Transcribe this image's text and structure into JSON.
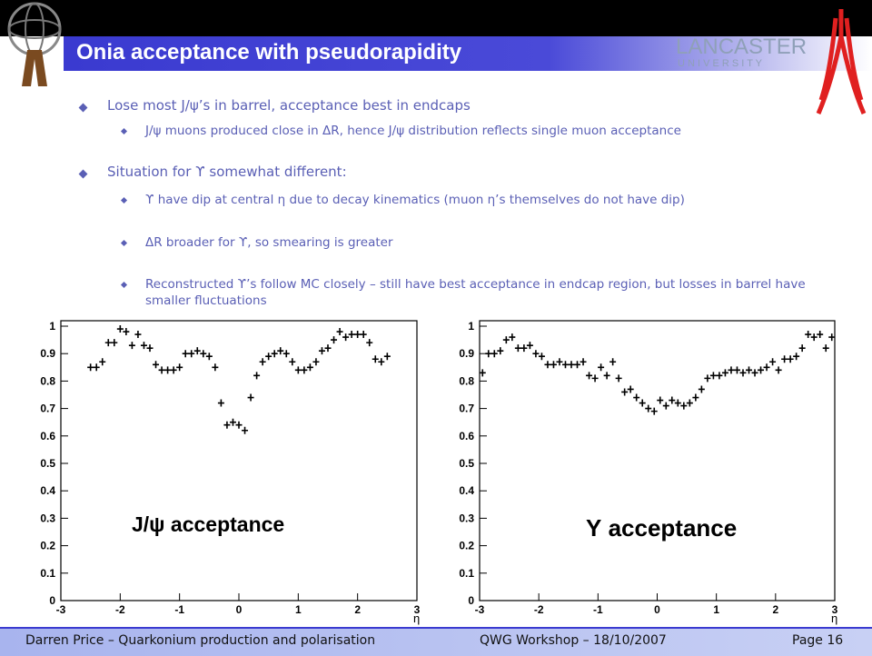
{
  "header": {
    "title": "Onia acceptance with pseudorapidity",
    "logo_name": "LANCASTER",
    "logo_sub": "U N I V E R S I T Y"
  },
  "bullets": [
    {
      "text": "Lose most J/ψ’s in barrel, acceptance best in endcaps",
      "sub": [
        "J/ψ muons produced close in ΔR, hence J/ψ distribution reflects single muon acceptance"
      ]
    },
    {
      "text": "Situation for ϒ somewhat different:",
      "sub": [
        "ϒ have dip at central η due to decay kinematics (muon η’s themselves do not have dip)",
        "ΔR broader for ϒ, so smearing is greater",
        "Reconstructed ϒ’s follow MC closely – still have best acceptance in endcap region, but losses in barrel have smaller fluctuations"
      ]
    }
  ],
  "footer": {
    "left": "Darren Price – Quarkonium production and polarisation",
    "center": "QWG Workshop – 18/10/2007",
    "right": "Page 16"
  },
  "chart_data": [
    {
      "type": "scatter",
      "annotation": "J/ψ acceptance",
      "xlabel": "η",
      "color": "#000000",
      "x": [
        -2.5,
        -2.4,
        -2.3,
        -2.2,
        -2.1,
        -2.0,
        -1.9,
        -1.8,
        -1.7,
        -1.6,
        -1.5,
        -1.4,
        -1.3,
        -1.2,
        -1.1,
        -1.0,
        -0.9,
        -0.8,
        -0.7,
        -0.6,
        -0.5,
        -0.4,
        -0.3,
        -0.2,
        -0.1,
        0.0,
        0.1,
        0.2,
        0.3,
        0.4,
        0.5,
        0.6,
        0.7,
        0.8,
        0.9,
        1.0,
        1.1,
        1.2,
        1.3,
        1.4,
        1.5,
        1.6,
        1.7,
        1.8,
        1.9,
        2.0,
        2.1,
        2.2,
        2.3,
        2.4,
        2.5
      ],
      "values": [
        0.85,
        0.85,
        0.87,
        0.94,
        0.94,
        0.99,
        0.98,
        0.93,
        0.97,
        0.93,
        0.92,
        0.86,
        0.84,
        0.84,
        0.84,
        0.85,
        0.9,
        0.9,
        0.91,
        0.9,
        0.89,
        0.85,
        0.72,
        0.64,
        0.65,
        0.64,
        0.62,
        0.74,
        0.82,
        0.87,
        0.89,
        0.9,
        0.91,
        0.9,
        0.87,
        0.84,
        0.84,
        0.85,
        0.87,
        0.91,
        0.92,
        0.95,
        0.98,
        0.96,
        0.97,
        0.97,
        0.97,
        0.94,
        0.88,
        0.87,
        0.89
      ],
      "xlim": [
        -3,
        3
      ],
      "ylim": [
        0,
        1
      ],
      "xticks": [
        -3,
        -2,
        -1,
        0,
        1,
        2,
        3
      ],
      "yticks": [
        0,
        0.1,
        0.2,
        0.3,
        0.4,
        0.5,
        0.6,
        0.7,
        0.8,
        0.9,
        1
      ]
    },
    {
      "type": "scatter",
      "annotation": "Υ acceptance",
      "xlabel": "η",
      "color": "#000000",
      "x": [
        -2.95,
        -2.85,
        -2.75,
        -2.65,
        -2.55,
        -2.45,
        -2.35,
        -2.25,
        -2.15,
        -2.05,
        -1.95,
        -1.85,
        -1.75,
        -1.65,
        -1.55,
        -1.45,
        -1.35,
        -1.25,
        -1.15,
        -1.05,
        -0.95,
        -0.85,
        -0.75,
        -0.65,
        -0.55,
        -0.45,
        -0.35,
        -0.25,
        -0.15,
        -0.05,
        0.05,
        0.15,
        0.25,
        0.35,
        0.45,
        0.55,
        0.65,
        0.75,
        0.85,
        0.95,
        1.05,
        1.15,
        1.25,
        1.35,
        1.45,
        1.55,
        1.65,
        1.75,
        1.85,
        1.95,
        2.05,
        2.15,
        2.25,
        2.35,
        2.45,
        2.55,
        2.65,
        2.75,
        2.85,
        2.95
      ],
      "values": [
        0.83,
        0.9,
        0.9,
        0.91,
        0.95,
        0.96,
        0.92,
        0.92,
        0.93,
        0.9,
        0.89,
        0.86,
        0.86,
        0.87,
        0.86,
        0.86,
        0.86,
        0.87,
        0.82,
        0.81,
        0.85,
        0.82,
        0.87,
        0.81,
        0.76,
        0.77,
        0.74,
        0.72,
        0.7,
        0.69,
        0.73,
        0.71,
        0.73,
        0.72,
        0.71,
        0.72,
        0.74,
        0.77,
        0.81,
        0.82,
        0.82,
        0.83,
        0.84,
        0.84,
        0.83,
        0.84,
        0.83,
        0.84,
        0.85,
        0.87,
        0.84,
        0.88,
        0.88,
        0.89,
        0.92,
        0.97,
        0.96,
        0.97,
        0.92,
        0.96
      ],
      "xlim": [
        -3,
        3
      ],
      "ylim": [
        0,
        1
      ],
      "xticks": [
        -3,
        -2,
        -1,
        0,
        1,
        2,
        3
      ],
      "yticks": [
        0,
        0.1,
        0.2,
        0.3,
        0.4,
        0.5,
        0.6,
        0.7,
        0.8,
        0.9,
        1
      ]
    }
  ]
}
